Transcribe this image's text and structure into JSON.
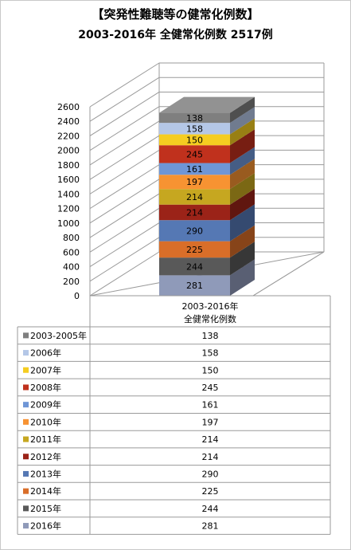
{
  "chart_data": {
    "type": "bar",
    "subtype": "stacked-3d-column-with-data-table",
    "title": "【突発性難聴等の健常化例数】",
    "subtitle": "2003-2016年  全健常化例数  2517例",
    "category": "2003-2016年\n全健常化例数",
    "category_lines": [
      "2003-2016年",
      "全健常化例数"
    ],
    "ylim": [
      0,
      2600
    ],
    "yticks": [
      0,
      200,
      400,
      600,
      800,
      1000,
      1200,
      1400,
      1600,
      1800,
      2000,
      2200,
      2400,
      2600
    ],
    "grid": true,
    "legend": "data-table",
    "series": [
      {
        "name": "2003-2005年",
        "value": 138,
        "value_label": "138",
        "color": "#7f7f7f"
      },
      {
        "name": "2006年",
        "value": 158,
        "value_label": "158",
        "color": "#b4c7e7"
      },
      {
        "name": "2007年",
        "value": 150,
        "value_label": "150",
        "color": "#f5cd21"
      },
      {
        "name": "2008年",
        "value": 245,
        "value_label": "245",
        "color": "#c0311d"
      },
      {
        "name": "2009年",
        "value": 161,
        "value_label": "161",
        "color": "#6f96d6"
      },
      {
        "name": "2010年",
        "value": 197,
        "value_label": "197",
        "color": "#f79332"
      },
      {
        "name": "2011年",
        "value": 214,
        "value_label": "214",
        "color": "#c6a720"
      },
      {
        "name": "2012年",
        "value": 214,
        "value_label": "214",
        "color": "#9b2318"
      },
      {
        "name": "2013年",
        "value": 290,
        "value_label": "290",
        "color": "#5578b4"
      },
      {
        "name": "2014年",
        "value": 225,
        "value_label": "225",
        "color": "#d96e29"
      },
      {
        "name": "2015年",
        "value": 244,
        "value_label": "244",
        "color": "#595959"
      },
      {
        "name": "2016年",
        "value": 281,
        "value_label": "281",
        "color": "#8f9ab9"
      }
    ]
  }
}
